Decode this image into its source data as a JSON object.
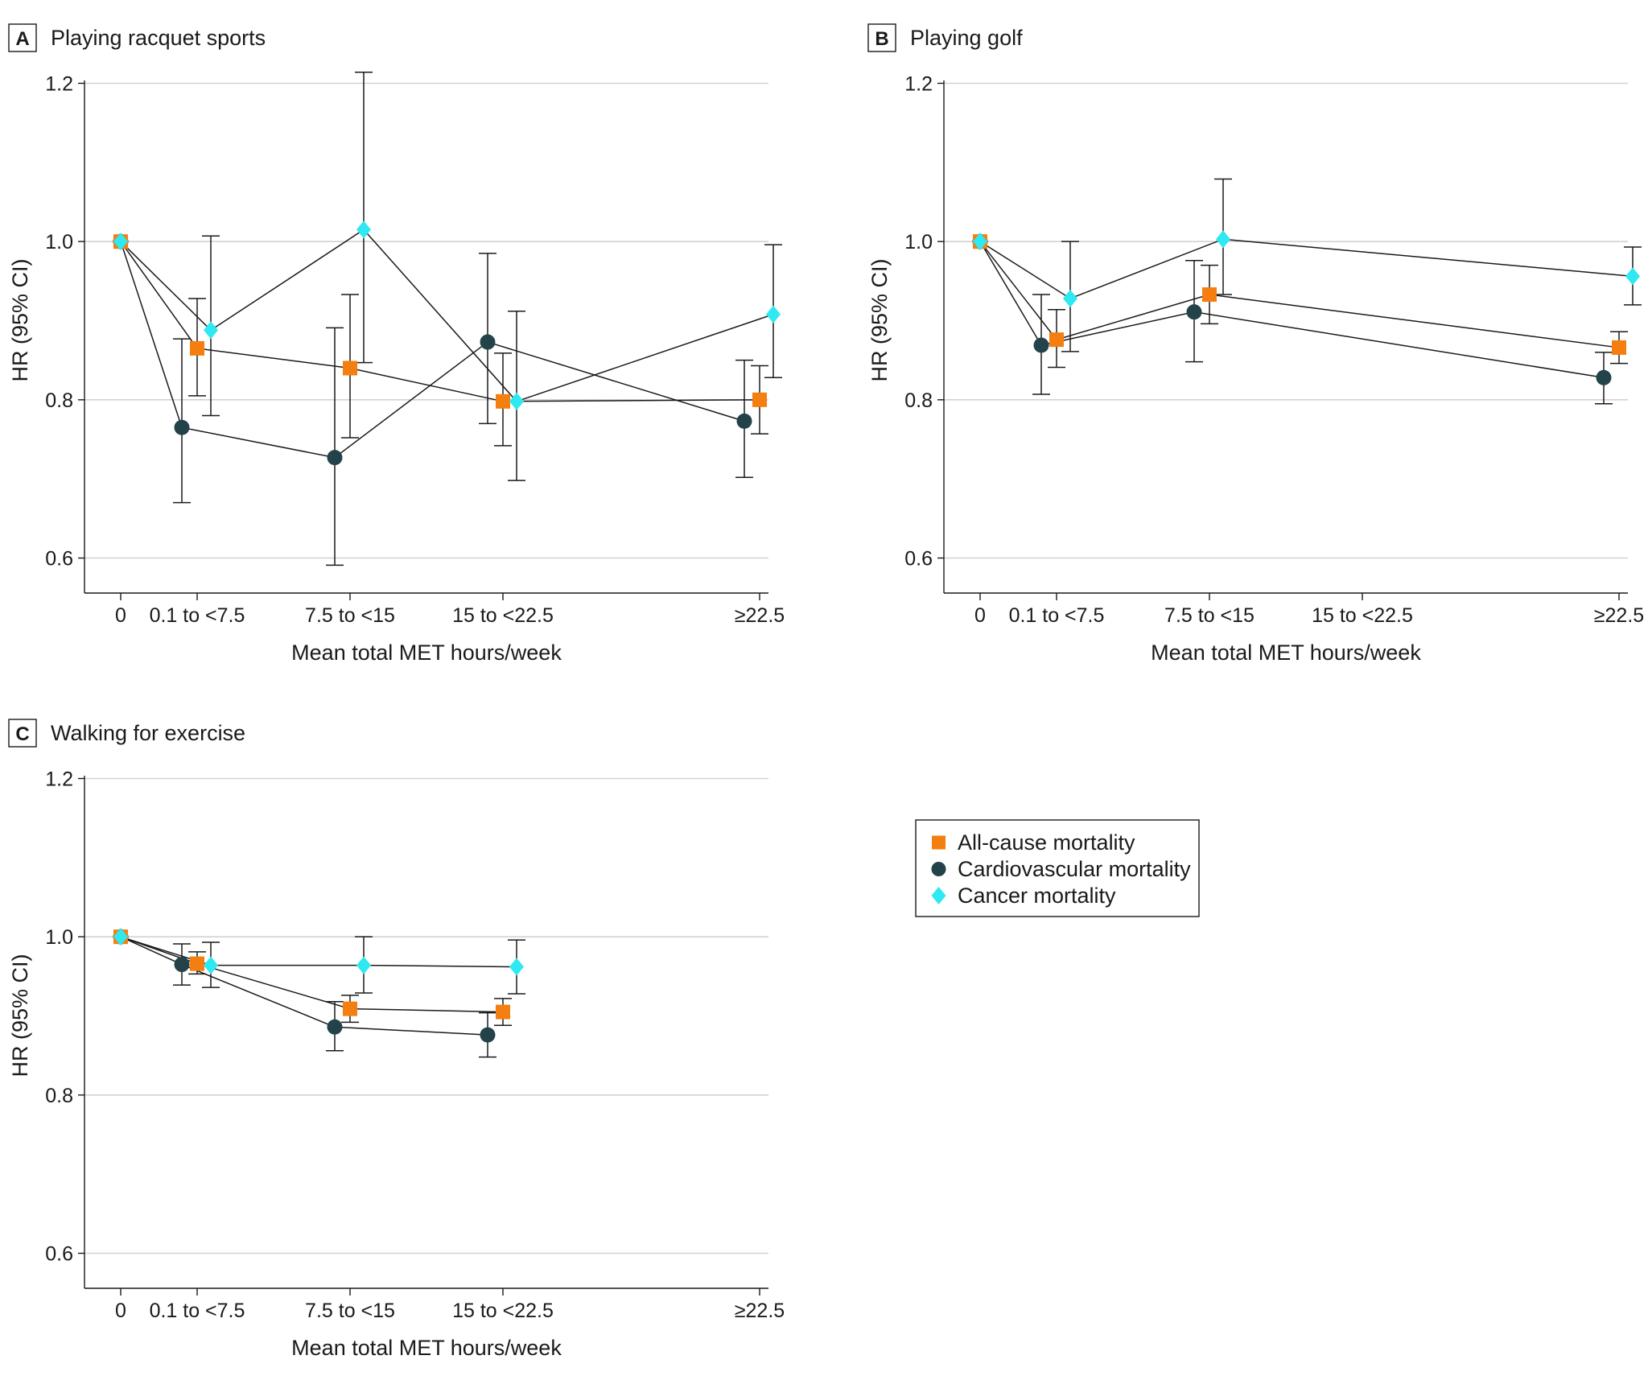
{
  "figure": {
    "x_categories": [
      "0",
      "0.1 to <7.5",
      "7.5 to <15",
      "15 to <22.5",
      "≥22.5"
    ],
    "xlabel": "Mean total MET hours/week",
    "ylabel": "HR (95% CI)",
    "ylim": [
      0.56,
      1.2
    ],
    "yticks": [
      "0.6",
      "0.8",
      "1.0",
      "1.2"
    ],
    "colors": {
      "all_cause": "#F47F10",
      "cardiovascular": "#23424A",
      "cancer": "#2EE8F2"
    }
  },
  "legend": [
    {
      "key": "all_cause",
      "label": "All-cause mortality",
      "marker": "square"
    },
    {
      "key": "cardiovascular",
      "label": "Cardiovascular mortality",
      "marker": "circle"
    },
    {
      "key": "cancer",
      "label": "Cancer mortality",
      "marker": "diamond"
    }
  ],
  "chart_data": [
    {
      "type": "scatter",
      "letter": "A",
      "title": "Playing racquet sports",
      "categories": [
        "0",
        "0.1 to <7.5",
        "7.5 to <15",
        "15 to <22.5",
        "≥22.5"
      ],
      "xlabel": "Mean total MET hours/week",
      "ylabel": "HR (95% CI)",
      "ylim": [
        0.56,
        1.2
      ],
      "series": [
        {
          "key": "all_cause",
          "name": "All-cause mortality",
          "x": [
            0,
            1,
            2,
            3,
            4
          ],
          "y": [
            1.0,
            0.865,
            0.84,
            0.798,
            0.8
          ],
          "lo": [
            null,
            0.805,
            0.752,
            0.742,
            0.757
          ],
          "hi": [
            null,
            0.928,
            0.933,
            0.859,
            0.843
          ]
        },
        {
          "key": "cardiovascular",
          "name": "Cardiovascular mortality",
          "x": [
            0,
            1,
            2,
            3,
            4
          ],
          "y": [
            1.0,
            0.765,
            0.727,
            0.873,
            0.773
          ],
          "lo": [
            null,
            0.67,
            0.591,
            0.77,
            0.702
          ],
          "hi": [
            null,
            0.877,
            0.891,
            0.985,
            0.85
          ]
        },
        {
          "key": "cancer",
          "name": "Cancer mortality",
          "x": [
            0,
            1,
            2,
            3,
            4
          ],
          "y": [
            1.0,
            0.888,
            1.015,
            0.798,
            0.908
          ],
          "lo": [
            null,
            0.78,
            0.847,
            0.698,
            0.828
          ],
          "hi": [
            null,
            1.007,
            1.214,
            0.912,
            0.996
          ]
        }
      ]
    },
    {
      "type": "scatter",
      "letter": "B",
      "title": "Playing golf",
      "categories": [
        "0",
        "0.1 to <7.5",
        "7.5 to <15",
        "15 to <22.5",
        "≥22.5"
      ],
      "xlabel": "Mean total MET hours/week",
      "ylabel": "HR (95% CI)",
      "ylim": [
        0.56,
        1.2
      ],
      "series": [
        {
          "key": "all_cause",
          "name": "All-cause mortality",
          "x": [
            0,
            1,
            2,
            4
          ],
          "y": [
            1.0,
            0.876,
            0.933,
            0.866
          ],
          "lo": [
            null,
            0.841,
            0.896,
            0.846
          ],
          "hi": [
            null,
            0.914,
            0.97,
            0.886
          ]
        },
        {
          "key": "cardiovascular",
          "name": "Cardiovascular mortality",
          "x": [
            0,
            1,
            2,
            4
          ],
          "y": [
            1.0,
            0.869,
            0.911,
            0.828
          ],
          "lo": [
            null,
            0.807,
            0.848,
            0.795
          ],
          "hi": [
            null,
            0.933,
            0.976,
            0.86
          ]
        },
        {
          "key": "cancer",
          "name": "Cancer mortality",
          "x": [
            0,
            1,
            2,
            4
          ],
          "y": [
            1.0,
            0.928,
            1.003,
            0.956
          ],
          "lo": [
            null,
            0.861,
            0.933,
            0.92
          ],
          "hi": [
            null,
            1.0,
            1.079,
            0.993
          ]
        }
      ]
    },
    {
      "type": "scatter",
      "letter": "C",
      "title": "Walking for exercise",
      "categories": [
        "0",
        "0.1 to <7.5",
        "7.5 to <15",
        "15 to <22.5",
        "≥22.5"
      ],
      "xlabel": "Mean total MET hours/week",
      "ylabel": "HR (95% CI)",
      "ylim": [
        0.56,
        1.2
      ],
      "series": [
        {
          "key": "all_cause",
          "name": "All-cause mortality",
          "x": [
            0,
            1,
            2,
            3
          ],
          "y": [
            1.0,
            0.966,
            0.909,
            0.905
          ],
          "lo": [
            null,
            0.953,
            0.892,
            0.888
          ],
          "hi": [
            null,
            0.981,
            0.926,
            0.922
          ]
        },
        {
          "key": "cardiovascular",
          "name": "Cardiovascular mortality",
          "x": [
            0,
            1,
            2,
            3
          ],
          "y": [
            1.0,
            0.965,
            0.886,
            0.876
          ],
          "lo": [
            null,
            0.939,
            0.856,
            0.848
          ],
          "hi": [
            null,
            0.991,
            0.918,
            0.904
          ]
        },
        {
          "key": "cancer",
          "name": "Cancer mortality",
          "x": [
            0,
            1,
            2,
            3
          ],
          "y": [
            1.0,
            0.964,
            0.964,
            0.962
          ],
          "lo": [
            null,
            0.936,
            0.929,
            0.928
          ],
          "hi": [
            null,
            0.993,
            1.0,
            0.996
          ]
        }
      ]
    }
  ]
}
